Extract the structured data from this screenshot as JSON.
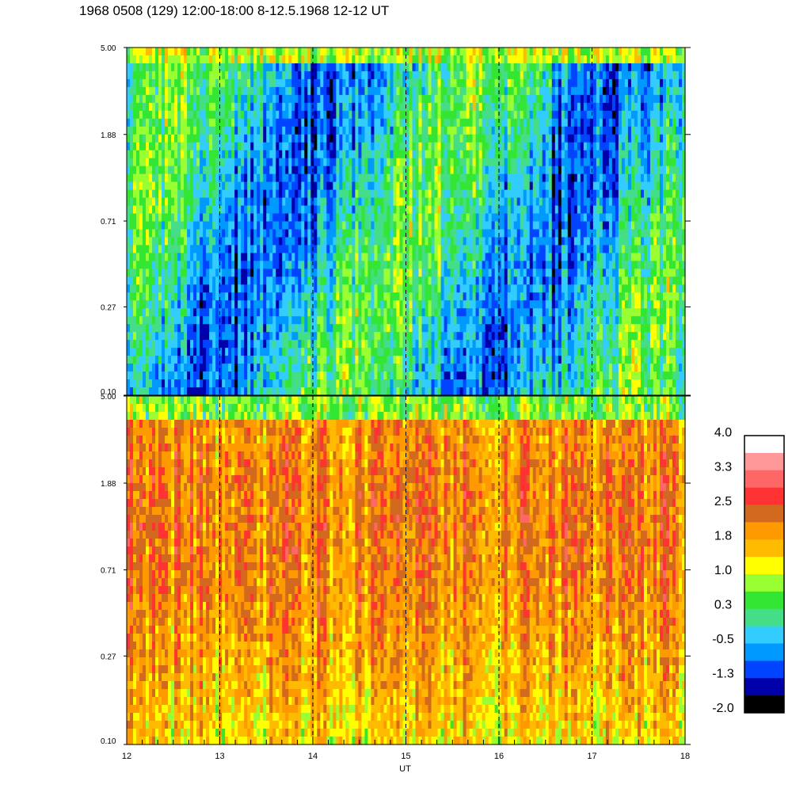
{
  "title": "1968 0508 (129) 12:00-18:00 8-12.5.1968  12-12 UT",
  "chart_data": [
    {
      "type": "heatmap",
      "panel": "top",
      "xlabel": "",
      "y_scale": "log",
      "ylim": [
        0.1,
        5.0
      ],
      "y_ticks": [
        "5.00",
        "1.88",
        "0.71",
        "0.27",
        "0.10"
      ],
      "xlim": [
        12,
        18
      ],
      "x_marker_lines": [
        13,
        14,
        15,
        16,
        17
      ],
      "dominant_color_range": [
        -1.3,
        1.0
      ]
    },
    {
      "type": "heatmap",
      "panel": "bottom",
      "xlabel": "UT",
      "y_scale": "log",
      "ylim": [
        0.1,
        5.0
      ],
      "y_ticks": [
        "5.00",
        "1.88",
        "0.71",
        "0.27",
        "0.10"
      ],
      "xlim": [
        12,
        18
      ],
      "x_ticks": [
        "12",
        "13",
        "14",
        "15",
        "16",
        "17",
        "18"
      ],
      "x_marker_lines": [
        13,
        14,
        15,
        16,
        17
      ],
      "dominant_color_range": [
        0.3,
        2.5
      ]
    }
  ],
  "colorbar": {
    "labels": [
      "4.0",
      "3.3",
      "2.5",
      "1.8",
      "1.0",
      "0.3",
      "-0.5",
      "-1.3",
      "-2.0"
    ],
    "colors": [
      "#ffffff",
      "#ff9999",
      "#ff6666",
      "#ff3333",
      "#d2691e",
      "#ff9900",
      "#ffbb00",
      "#ffff00",
      "#99ff33",
      "#33e633",
      "#44dd88",
      "#33ccff",
      "#0099ff",
      "#0044ff",
      "#0000aa",
      "#000000"
    ]
  }
}
